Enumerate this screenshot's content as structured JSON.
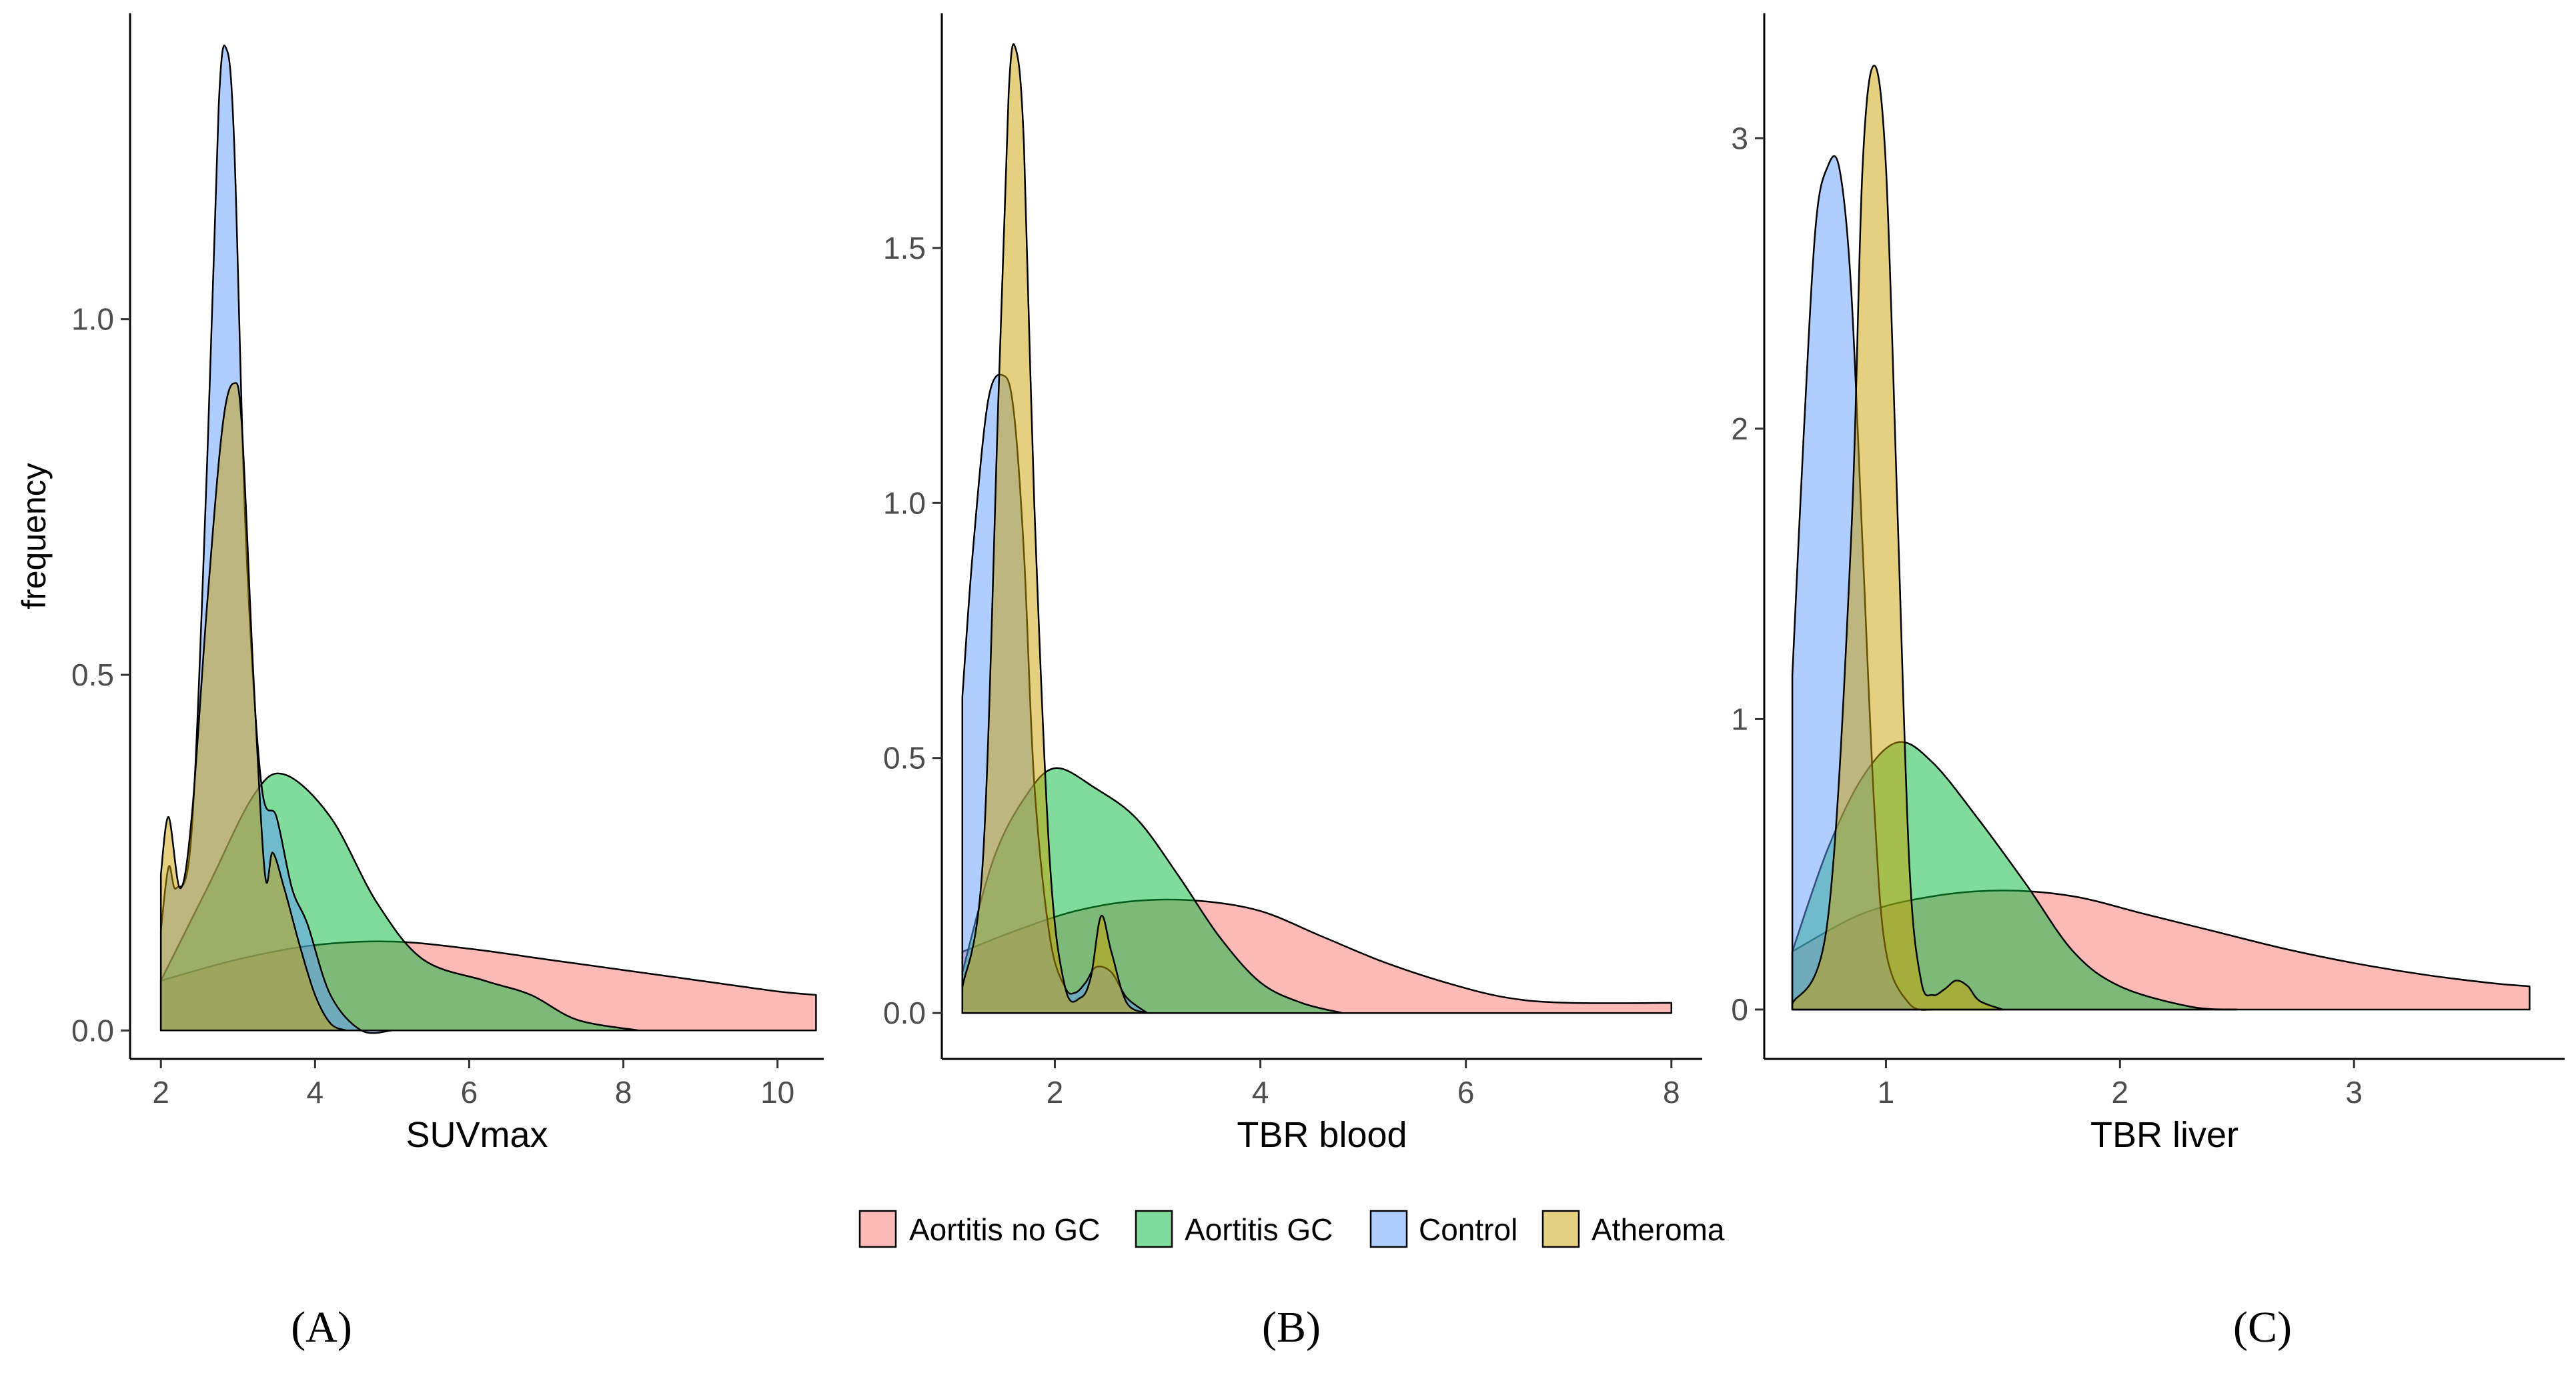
{
  "chart_data": [
    {
      "type": "area",
      "panel_label": "(A)",
      "xlabel": "SUVmax",
      "ylabel": "frequency",
      "xlim": [
        1.6,
        10.6
      ],
      "ylim": [
        -0.04,
        1.43
      ],
      "xticks": [
        2,
        4,
        6,
        8,
        10
      ],
      "xtick_labels": [
        "2",
        "4",
        "6",
        "8",
        "10"
      ],
      "yticks": [
        0,
        0.5,
        1.0
      ],
      "ytick_labels": [
        "0.0",
        "0.5",
        "1.0"
      ],
      "series": [
        {
          "name": "Aortitis no GC",
          "x": [
            2,
            3,
            4,
            5,
            6,
            7,
            8,
            9,
            10,
            10.5
          ],
          "y": [
            0.07,
            0.1,
            0.12,
            0.125,
            0.115,
            0.1,
            0.085,
            0.07,
            0.055,
            0.05
          ]
        },
        {
          "name": "Aortitis GC",
          "x": [
            2,
            2.6,
            3.2,
            3.6,
            4.2,
            4.8,
            5.4,
            6.2,
            6.8,
            7.4,
            8.2
          ],
          "y": [
            0.07,
            0.2,
            0.33,
            0.36,
            0.3,
            0.18,
            0.1,
            0.07,
            0.05,
            0.015,
            0
          ]
        },
        {
          "name": "Control",
          "x": [
            2,
            2.1,
            2.2,
            2.4,
            2.6,
            2.75,
            2.85,
            2.95,
            3.1,
            3.3,
            3.5,
            3.7,
            3.9,
            4.2,
            4.6,
            5.0
          ],
          "y": [
            0.14,
            0.23,
            0.2,
            0.28,
            0.8,
            1.3,
            1.38,
            1.25,
            0.7,
            0.35,
            0.3,
            0.2,
            0.15,
            0.05,
            0,
            0
          ]
        },
        {
          "name": "Atheroma",
          "x": [
            2,
            2.1,
            2.25,
            2.4,
            2.6,
            2.8,
            2.95,
            3.05,
            3.2,
            3.35,
            3.45,
            3.6,
            3.8,
            4.0,
            4.2,
            4.4
          ],
          "y": [
            0.22,
            0.3,
            0.2,
            0.3,
            0.6,
            0.85,
            0.91,
            0.85,
            0.5,
            0.22,
            0.25,
            0.2,
            0.12,
            0.05,
            0.01,
            0
          ]
        }
      ]
    },
    {
      "type": "area",
      "panel_label": "(B)",
      "xlabel": "TBR blood",
      "ylabel": "",
      "xlim": [
        0.9,
        8.3
      ],
      "ylim": [
        -0.09,
        1.96
      ],
      "xticks": [
        2,
        4,
        6,
        8
      ],
      "xtick_labels": [
        "2",
        "4",
        "6",
        "8"
      ],
      "yticks": [
        0,
        0.5,
        1.0,
        1.5
      ],
      "ytick_labels": [
        "0.0",
        "0.5",
        "1.0",
        "1.5"
      ],
      "series": [
        {
          "name": "Aortitis no GC",
          "x": [
            1.1,
            1.6,
            2.2,
            2.8,
            3.4,
            4.0,
            4.6,
            5.2,
            5.8,
            6.4,
            7.0,
            8.0
          ],
          "y": [
            0.12,
            0.16,
            0.2,
            0.22,
            0.22,
            0.2,
            0.15,
            0.1,
            0.06,
            0.03,
            0.02,
            0.02
          ]
        },
        {
          "name": "Aortitis GC",
          "x": [
            1.1,
            1.4,
            1.7,
            2.0,
            2.4,
            2.8,
            3.2,
            3.6,
            4.0,
            4.4,
            4.8
          ],
          "y": [
            0.08,
            0.3,
            0.42,
            0.48,
            0.44,
            0.38,
            0.27,
            0.15,
            0.06,
            0.02,
            0
          ]
        },
        {
          "name": "Control",
          "x": [
            1.1,
            1.2,
            1.35,
            1.5,
            1.6,
            1.7,
            1.8,
            1.95,
            2.1,
            2.2,
            2.3,
            2.4,
            2.55,
            2.7,
            2.9
          ],
          "y": [
            0.62,
            0.9,
            1.2,
            1.25,
            1.18,
            0.9,
            0.45,
            0.15,
            0.05,
            0.04,
            0.06,
            0.09,
            0.08,
            0.03,
            0
          ]
        },
        {
          "name": "Atheroma",
          "x": [
            1.1,
            1.3,
            1.45,
            1.55,
            1.62,
            1.7,
            1.8,
            1.95,
            2.1,
            2.25,
            2.35,
            2.45,
            2.55,
            2.7,
            2.9
          ],
          "y": [
            0.05,
            0.3,
            1.2,
            1.8,
            1.89,
            1.7,
            1.0,
            0.3,
            0.05,
            0.03,
            0.07,
            0.19,
            0.12,
            0.02,
            0
          ]
        }
      ]
    },
    {
      "type": "area",
      "panel_label": "(C)",
      "xlabel": "TBR liver",
      "ylabel": "",
      "xlim": [
        0.48,
        3.9
      ],
      "ylim": [
        -0.17,
        3.43
      ],
      "xticks": [
        1,
        2,
        3
      ],
      "xtick_labels": [
        "1",
        "2",
        "3"
      ],
      "yticks": [
        0,
        1,
        2,
        3
      ],
      "ytick_labels": [
        "0",
        "1",
        "2",
        "3"
      ],
      "series": [
        {
          "name": "Aortitis no GC",
          "x": [
            0.6,
            0.9,
            1.2,
            1.5,
            1.8,
            2.1,
            2.4,
            2.7,
            3.0,
            3.3,
            3.6,
            3.75
          ],
          "y": [
            0.2,
            0.33,
            0.39,
            0.41,
            0.39,
            0.33,
            0.27,
            0.21,
            0.16,
            0.12,
            0.09,
            0.08
          ]
        },
        {
          "name": "Aortitis GC",
          "x": [
            0.6,
            0.75,
            0.9,
            1.05,
            1.2,
            1.4,
            1.6,
            1.8,
            2.0,
            2.3,
            2.5
          ],
          "y": [
            0.2,
            0.55,
            0.8,
            0.92,
            0.85,
            0.65,
            0.43,
            0.2,
            0.08,
            0.01,
            0
          ]
        },
        {
          "name": "Control",
          "x": [
            0.6,
            0.65,
            0.7,
            0.75,
            0.8,
            0.85,
            0.9,
            0.95,
            1.0,
            1.1,
            1.2
          ],
          "y": [
            1.15,
            2.0,
            2.7,
            2.9,
            2.9,
            2.5,
            1.6,
            0.7,
            0.2,
            0.02,
            0
          ]
        },
        {
          "name": "Atheroma",
          "x": [
            0.6,
            0.75,
            0.85,
            0.9,
            0.95,
            1.0,
            1.05,
            1.1,
            1.15,
            1.2,
            1.25,
            1.3,
            1.35,
            1.4,
            1.5
          ],
          "y": [
            0.02,
            0.3,
            1.6,
            2.9,
            3.25,
            2.9,
            1.7,
            0.5,
            0.1,
            0.05,
            0.07,
            0.1,
            0.08,
            0.03,
            0
          ]
        }
      ]
    }
  ],
  "legend": {
    "items": [
      {
        "label": "Aortitis no GC",
        "color": "#F8766D"
      },
      {
        "label": "Aortitis GC",
        "color": "#00BA38"
      },
      {
        "label": "Control",
        "color": "#619CFF"
      },
      {
        "label": "Atheroma",
        "color": "#C9A100"
      }
    ]
  },
  "style": {
    "fill_opacity": 0.5,
    "outline_color": "#000000",
    "axis_color": "#000000"
  }
}
